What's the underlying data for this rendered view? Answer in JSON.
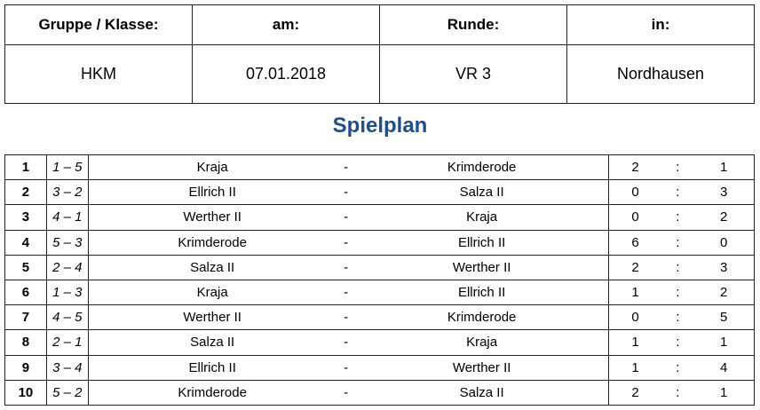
{
  "header": {
    "labels": [
      "Gruppe / Klasse:",
      "am:",
      "Runde:",
      "in:"
    ],
    "values": [
      "HKM",
      "07.01.2018",
      "VR 3",
      "Nordhausen"
    ]
  },
  "title": "Spielplan",
  "title_color": "#1f4e8c",
  "games": [
    {
      "nr": "1",
      "pair": "1 – 5",
      "home": "Kraja",
      "sep": "-",
      "away": "Krimderode",
      "g1": "2",
      "colon": ":",
      "g2": "1"
    },
    {
      "nr": "2",
      "pair": "3 – 2",
      "home": "Ellrich II",
      "sep": "-",
      "away": "Salza II",
      "g1": "0",
      "colon": ":",
      "g2": "3"
    },
    {
      "nr": "3",
      "pair": "4 – 1",
      "home": "Werther II",
      "sep": "-",
      "away": "Kraja",
      "g1": "0",
      "colon": ":",
      "g2": "2"
    },
    {
      "nr": "4",
      "pair": "5 – 3",
      "home": "Krimderode",
      "sep": "-",
      "away": "Ellrich II",
      "g1": "6",
      "colon": ":",
      "g2": "0"
    },
    {
      "nr": "5",
      "pair": "2 – 4",
      "home": "Salza II",
      "sep": "-",
      "away": "Werther II",
      "g1": "2",
      "colon": ":",
      "g2": "3"
    },
    {
      "nr": "6",
      "pair": "1 – 3",
      "home": "Kraja",
      "sep": "-",
      "away": "Ellrich II",
      "g1": "1",
      "colon": ":",
      "g2": "2"
    },
    {
      "nr": "7",
      "pair": "4 – 5",
      "home": "Werther II",
      "sep": "-",
      "away": "Krimderode",
      "g1": "0",
      "colon": ":",
      "g2": "5"
    },
    {
      "nr": "8",
      "pair": "2 – 1",
      "home": "Salza II",
      "sep": "-",
      "away": "Kraja",
      "g1": "1",
      "colon": ":",
      "g2": "1"
    },
    {
      "nr": "9",
      "pair": "3 – 4",
      "home": "Ellrich II",
      "sep": "-",
      "away": "Werther II",
      "g1": "1",
      "colon": ":",
      "g2": "4"
    },
    {
      "nr": "10",
      "pair": "5 – 2",
      "home": "Krimderode",
      "sep": "-",
      "away": "Salza II",
      "g1": "2",
      "colon": ":",
      "g2": "1"
    }
  ]
}
